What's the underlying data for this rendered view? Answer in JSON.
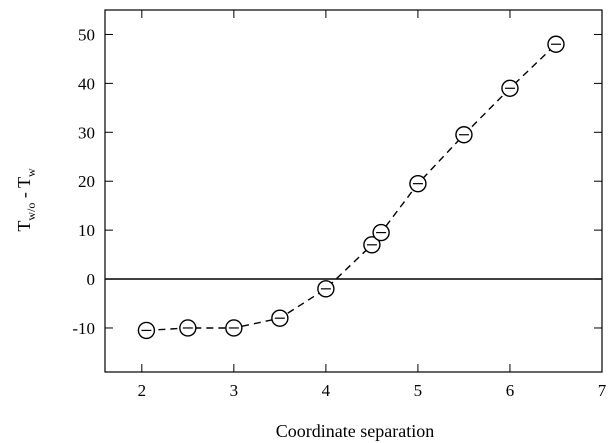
{
  "chart_data": {
    "type": "scatter",
    "title": "",
    "xlabel": "Coordinate separation",
    "ylabel": {
      "main1": "T",
      "sub1": "w/o",
      "mid": " - T",
      "sub2": "w"
    },
    "xlim": [
      1.6,
      7
    ],
    "ylim": [
      -19,
      55
    ],
    "xticks": [
      2,
      3,
      4,
      5,
      6,
      7
    ],
    "yticks": [
      -10,
      0,
      10,
      20,
      30,
      40,
      50
    ],
    "reference_line_y": 0,
    "line_style": "dashed",
    "marker": "open circle with horizontal bar",
    "grid": false,
    "series": [
      {
        "x": [
          2.05,
          2.5,
          3.0,
          3.5,
          4.0,
          4.5,
          4.6,
          5.0,
          5.5,
          6.0,
          6.5
        ],
        "y": [
          -10.5,
          -10.0,
          -10.0,
          -8.0,
          -2.0,
          7.0,
          9.5,
          19.5,
          29.5,
          39.0,
          48.0
        ]
      }
    ]
  }
}
